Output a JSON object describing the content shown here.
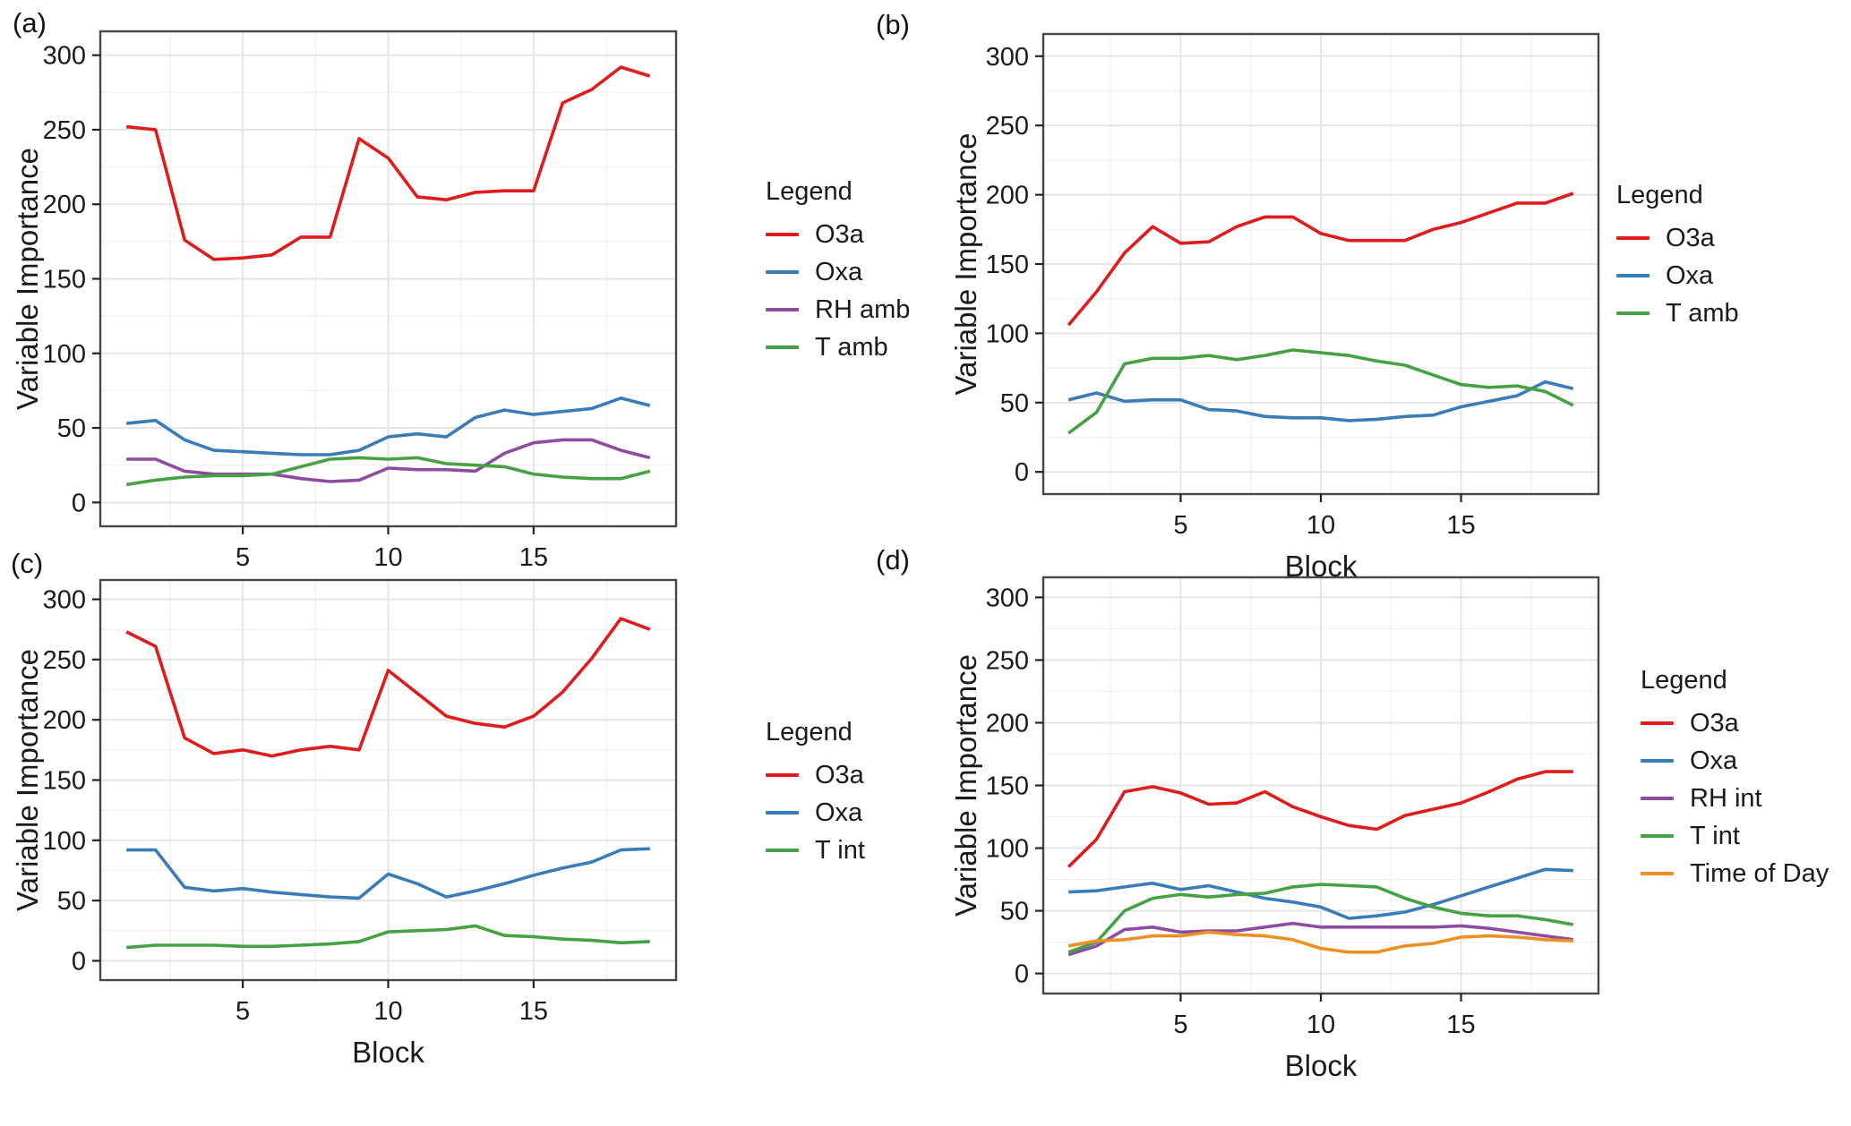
{
  "legend_title": "Legend",
  "axis": {
    "ylabel": "Variable Importance",
    "xlabel": "Block",
    "yticks": [
      0,
      50,
      100,
      150,
      200,
      250,
      300
    ],
    "xticks": [
      5,
      10,
      15
    ]
  },
  "colors": {
    "O3a": "#df1b1c",
    "Oxa": "#3a7cb8",
    "RH amb": "#8c4ca0",
    "RH int": "#8c4ca0",
    "T amb": "#44a244",
    "T int": "#44a244",
    "Time of Day": "#ec9023",
    "grid_major": "#e3e3e3",
    "grid_minor": "#f1f1f1",
    "panel_border": "#474747"
  },
  "chart_data": [
    {
      "type": "line",
      "panel_label": "(a)",
      "legend_title": "Legend",
      "title": "",
      "xlabel": "",
      "ylabel": "Variable Importance",
      "xlim": [
        1,
        19
      ],
      "ylim": [
        0,
        300
      ],
      "xticks": [
        5,
        10,
        15
      ],
      "yticks": [
        0,
        50,
        100,
        150,
        200,
        250,
        300
      ],
      "grid": "major+minor",
      "legend_position": "right",
      "x": [
        1,
        2,
        3,
        4,
        5,
        6,
        7,
        8,
        9,
        10,
        11,
        12,
        13,
        14,
        15,
        16,
        17,
        18,
        19
      ],
      "series": [
        {
          "name": "O3a",
          "color": "#df1b1c",
          "values": [
            252,
            250,
            176,
            163,
            164,
            166,
            178,
            178,
            244,
            231,
            205,
            203,
            208,
            209,
            209,
            268,
            277,
            292,
            286
          ]
        },
        {
          "name": "Oxa",
          "color": "#3a7cb8",
          "values": [
            53,
            55,
            42,
            35,
            34,
            33,
            32,
            32,
            35,
            44,
            46,
            44,
            57,
            62,
            59,
            61,
            63,
            70,
            65
          ]
        },
        {
          "name": "RH amb",
          "color": "#8c4ca0",
          "values": [
            29,
            29,
            21,
            19,
            19,
            19,
            16,
            14,
            15,
            23,
            22,
            22,
            21,
            33,
            40,
            42,
            42,
            35,
            30
          ]
        },
        {
          "name": "T amb",
          "color": "#44a244",
          "values": [
            12,
            15,
            17,
            18,
            18,
            19,
            24,
            29,
            30,
            29,
            30,
            26,
            25,
            24,
            19,
            17,
            16,
            16,
            21
          ]
        }
      ]
    },
    {
      "type": "line",
      "panel_label": "(b)",
      "legend_title": "Legend",
      "title": "",
      "xlabel": "Block",
      "ylabel": "Variable Importance",
      "xlim": [
        1,
        19
      ],
      "ylim": [
        0,
        300
      ],
      "xticks": [
        5,
        10,
        15
      ],
      "yticks": [
        0,
        50,
        100,
        150,
        200,
        250,
        300
      ],
      "grid": "major+minor",
      "legend_position": "right",
      "x": [
        1,
        2,
        3,
        4,
        5,
        6,
        7,
        8,
        9,
        10,
        11,
        12,
        13,
        14,
        15,
        16,
        17,
        18,
        19
      ],
      "series": [
        {
          "name": "O3a",
          "color": "#df1b1c",
          "values": [
            106,
            130,
            158,
            177,
            165,
            166,
            177,
            184,
            184,
            172,
            167,
            167,
            167,
            175,
            180,
            187,
            194,
            194,
            201
          ]
        },
        {
          "name": "Oxa",
          "color": "#3a7cb8",
          "values": [
            52,
            57,
            51,
            52,
            52,
            45,
            44,
            40,
            39,
            39,
            37,
            38,
            40,
            41,
            47,
            51,
            55,
            65,
            60
          ]
        },
        {
          "name": "T amb",
          "color": "#44a244",
          "values": [
            28,
            43,
            78,
            82,
            82,
            84,
            81,
            84,
            88,
            86,
            84,
            80,
            77,
            70,
            63,
            61,
            62,
            58,
            48
          ]
        }
      ]
    },
    {
      "type": "line",
      "panel_label": "(c)",
      "legend_title": "Legend",
      "title": "",
      "xlabel": "Block",
      "ylabel": "Variable Importance",
      "xlim": [
        1,
        19
      ],
      "ylim": [
        0,
        300
      ],
      "xticks": [
        5,
        10,
        15
      ],
      "yticks": [
        0,
        50,
        100,
        150,
        200,
        250,
        300
      ],
      "grid": "major+minor",
      "legend_position": "right",
      "x": [
        1,
        2,
        3,
        4,
        5,
        6,
        7,
        8,
        9,
        10,
        11,
        12,
        13,
        14,
        15,
        16,
        17,
        18,
        19
      ],
      "series": [
        {
          "name": "O3a",
          "color": "#df1b1c",
          "values": [
            273,
            261,
            185,
            172,
            175,
            170,
            175,
            178,
            175,
            241,
            222,
            203,
            197,
            194,
            203,
            223,
            251,
            284,
            275
          ]
        },
        {
          "name": "Oxa",
          "color": "#3a7cb8",
          "values": [
            92,
            92,
            61,
            58,
            60,
            57,
            55,
            53,
            52,
            72,
            64,
            53,
            58,
            64,
            71,
            77,
            82,
            92,
            93
          ]
        },
        {
          "name": "T int",
          "color": "#44a244",
          "values": [
            11,
            13,
            13,
            13,
            12,
            12,
            13,
            14,
            16,
            24,
            25,
            26,
            29,
            21,
            20,
            18,
            17,
            15,
            16
          ]
        }
      ]
    },
    {
      "type": "line",
      "panel_label": "(d)",
      "legend_title": "Legend",
      "title": "",
      "xlabel": "Block",
      "ylabel": "Variable Importance",
      "xlim": [
        1,
        19
      ],
      "ylim": [
        0,
        300
      ],
      "xticks": [
        5,
        10,
        15
      ],
      "yticks": [
        0,
        50,
        100,
        150,
        200,
        250,
        300
      ],
      "grid": "major+minor",
      "legend_position": "right",
      "x": [
        1,
        2,
        3,
        4,
        5,
        6,
        7,
        8,
        9,
        10,
        11,
        12,
        13,
        14,
        15,
        16,
        17,
        18,
        19
      ],
      "series": [
        {
          "name": "O3a",
          "color": "#df1b1c",
          "values": [
            85,
            107,
            145,
            149,
            144,
            135,
            136,
            145,
            133,
            125,
            118,
            115,
            126,
            131,
            136,
            145,
            155,
            161,
            161
          ]
        },
        {
          "name": "Oxa",
          "color": "#3a7cb8",
          "values": [
            65,
            66,
            69,
            72,
            67,
            70,
            65,
            60,
            57,
            53,
            44,
            46,
            49,
            55,
            62,
            69,
            76,
            83,
            82
          ]
        },
        {
          "name": "RH int",
          "color": "#8c4ca0",
          "values": [
            15,
            22,
            35,
            37,
            33,
            34,
            34,
            37,
            40,
            37,
            37,
            37,
            37,
            37,
            38,
            36,
            33,
            30,
            27
          ]
        },
        {
          "name": "T int",
          "color": "#44a244",
          "values": [
            17,
            25,
            50,
            60,
            63,
            61,
            63,
            64,
            69,
            71,
            70,
            69,
            60,
            53,
            48,
            46,
            46,
            43,
            39
          ]
        },
        {
          "name": "Time of Day",
          "color": "#ec9023",
          "values": [
            22,
            26,
            27,
            30,
            30,
            33,
            31,
            30,
            27,
            20,
            17,
            17,
            22,
            24,
            29,
            30,
            29,
            27,
            26
          ]
        }
      ]
    }
  ]
}
